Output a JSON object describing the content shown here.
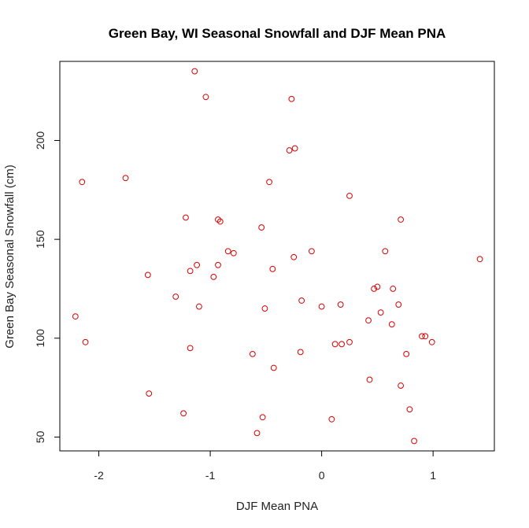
{
  "chart_data": {
    "type": "scatter",
    "title": "Green Bay, WI Seasonal Snowfall and DJF Mean PNA",
    "xlabel": "DJF Mean PNA",
    "ylabel": "Green Bay Seasonal Snowfall (cm)",
    "xlim": [
      -2.35,
      1.55
    ],
    "ylim": [
      43,
      240
    ],
    "xticks": [
      -2,
      -1,
      0,
      1
    ],
    "xtick_labels": [
      "-2",
      "-1",
      "0",
      "1"
    ],
    "yticks": [
      50,
      100,
      150,
      200
    ],
    "ytick_labels": [
      "50",
      "100",
      "150",
      "200"
    ],
    "grid": false,
    "legend": "none",
    "marker": "open-circle",
    "point_color": "#dd0000",
    "points": [
      {
        "x": -1.14,
        "y": 235
      },
      {
        "x": -1.04,
        "y": 222
      },
      {
        "x": -0.27,
        "y": 221
      },
      {
        "x": -0.24,
        "y": 196
      },
      {
        "x": -0.29,
        "y": 195
      },
      {
        "x": -2.15,
        "y": 179
      },
      {
        "x": -1.76,
        "y": 181
      },
      {
        "x": -0.47,
        "y": 179
      },
      {
        "x": 0.25,
        "y": 172
      },
      {
        "x": -1.22,
        "y": 161
      },
      {
        "x": -0.93,
        "y": 160
      },
      {
        "x": -0.91,
        "y": 159
      },
      {
        "x": 0.71,
        "y": 160
      },
      {
        "x": -0.54,
        "y": 156
      },
      {
        "x": -0.84,
        "y": 144
      },
      {
        "x": -0.79,
        "y": 143
      },
      {
        "x": -0.09,
        "y": 144
      },
      {
        "x": 0.57,
        "y": 144
      },
      {
        "x": -0.25,
        "y": 141
      },
      {
        "x": 1.42,
        "y": 140
      },
      {
        "x": -1.12,
        "y": 137
      },
      {
        "x": -0.93,
        "y": 137
      },
      {
        "x": -1.18,
        "y": 134
      },
      {
        "x": -1.56,
        "y": 132
      },
      {
        "x": -0.97,
        "y": 131
      },
      {
        "x": -0.44,
        "y": 135
      },
      {
        "x": -1.31,
        "y": 121
      },
      {
        "x": 0.47,
        "y": 125
      },
      {
        "x": 0.5,
        "y": 126
      },
      {
        "x": 0.64,
        "y": 125
      },
      {
        "x": -0.18,
        "y": 119
      },
      {
        "x": -1.1,
        "y": 116
      },
      {
        "x": -0.51,
        "y": 115
      },
      {
        "x": 0.0,
        "y": 116
      },
      {
        "x": 0.17,
        "y": 117
      },
      {
        "x": 0.69,
        "y": 117
      },
      {
        "x": 0.53,
        "y": 113
      },
      {
        "x": -2.21,
        "y": 111
      },
      {
        "x": 0.42,
        "y": 109
      },
      {
        "x": 0.63,
        "y": 107
      },
      {
        "x": 0.9,
        "y": 101
      },
      {
        "x": 0.93,
        "y": 101
      },
      {
        "x": -2.12,
        "y": 98
      },
      {
        "x": 0.99,
        "y": 98
      },
      {
        "x": 0.25,
        "y": 98
      },
      {
        "x": 0.12,
        "y": 97
      },
      {
        "x": 0.18,
        "y": 97
      },
      {
        "x": -1.18,
        "y": 95
      },
      {
        "x": -0.19,
        "y": 93
      },
      {
        "x": -0.62,
        "y": 92
      },
      {
        "x": 0.76,
        "y": 92
      },
      {
        "x": -0.43,
        "y": 85
      },
      {
        "x": 0.43,
        "y": 79
      },
      {
        "x": 0.71,
        "y": 76
      },
      {
        "x": -1.55,
        "y": 72
      },
      {
        "x": 0.79,
        "y": 64
      },
      {
        "x": -1.24,
        "y": 62
      },
      {
        "x": -0.53,
        "y": 60
      },
      {
        "x": 0.09,
        "y": 59
      },
      {
        "x": -0.58,
        "y": 52
      },
      {
        "x": 0.83,
        "y": 48
      }
    ]
  }
}
